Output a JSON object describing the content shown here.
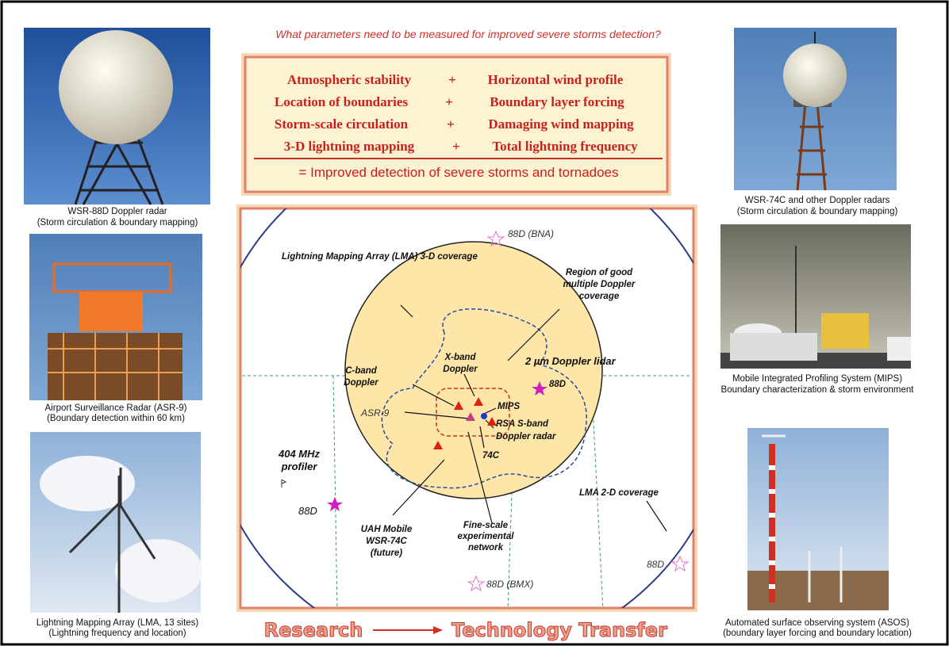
{
  "question": "What parameters need to be measured for improved severe storms detection?",
  "parameters": {
    "rows": [
      {
        "left": "Atmospheric stability",
        "op": "+",
        "right": "Horizontal wind profile"
      },
      {
        "left": "Location of boundaries",
        "op": "+",
        "right": "Boundary layer forcing"
      },
      {
        "left": "Storm-scale circulation",
        "op": "+",
        "right": "Damaging wind mapping"
      },
      {
        "left": "3-D lightning mapping",
        "op": "+",
        "right": "Total lightning frequency"
      }
    ],
    "result": "=  Improved detection of severe storms and tornadoes"
  },
  "left_photos": [
    {
      "caption": [
        "WSR-88D Doppler radar",
        "(Storm circulation & boundary mapping)"
      ]
    },
    {
      "caption": [
        "Airport Surveillance Radar (ASR-9)",
        "(Boundary detection within 60 km)"
      ]
    },
    {
      "caption": [
        "Lightning Mapping Array (LMA, 13 sites)",
        "(Lightning frequency and location)"
      ]
    }
  ],
  "right_photos": [
    {
      "caption": [
        "WSR-74C and other  Doppler radars",
        "(Storm circulation & boundary mapping)"
      ]
    },
    {
      "caption": [
        "Mobile Integrated Profiling System (MIPS)",
        "Boundary characterization & storm environment"
      ]
    },
    {
      "caption": [
        "Automated surface observing system (ASOS)",
        "(boundary layer forcing and boundary location)"
      ]
    }
  ],
  "map": {
    "labels": [
      {
        "lines": [
          "88D (BNA)"
        ]
      },
      {
        "lines": [
          "Lightning Mapping Array (LMA) 3-D coverage"
        ]
      },
      {
        "lines": [
          "Region of good",
          "multiple Doppler",
          "coverage"
        ]
      },
      {
        "lines": [
          "X-band",
          "Doppler"
        ]
      },
      {
        "lines": [
          "2 µm Doppler lidar"
        ]
      },
      {
        "lines": [
          "C-band",
          "Doppler"
        ]
      },
      {
        "lines": [
          "88D"
        ]
      },
      {
        "lines": [
          "MIPS"
        ]
      },
      {
        "lines": [
          "ASR-9"
        ]
      },
      {
        "lines": [
          "RSA S-band",
          "Doppler radar"
        ]
      },
      {
        "lines": [
          "74C"
        ]
      },
      {
        "lines": [
          "404 MHz",
          "profiler"
        ]
      },
      {
        "lines": [
          "88D"
        ]
      },
      {
        "lines": [
          "LMA 2-D coverage"
        ]
      },
      {
        "lines": [
          "UAH Mobile",
          "WSR-74C",
          "(future)"
        ]
      },
      {
        "lines": [
          "Fine-scale",
          "experimental",
          "network"
        ]
      },
      {
        "lines": [
          "88D"
        ]
      },
      {
        "lines": [
          "88D (BMX)"
        ]
      }
    ]
  },
  "footer": {
    "from": "Research",
    "to": "Technology Transfer"
  }
}
